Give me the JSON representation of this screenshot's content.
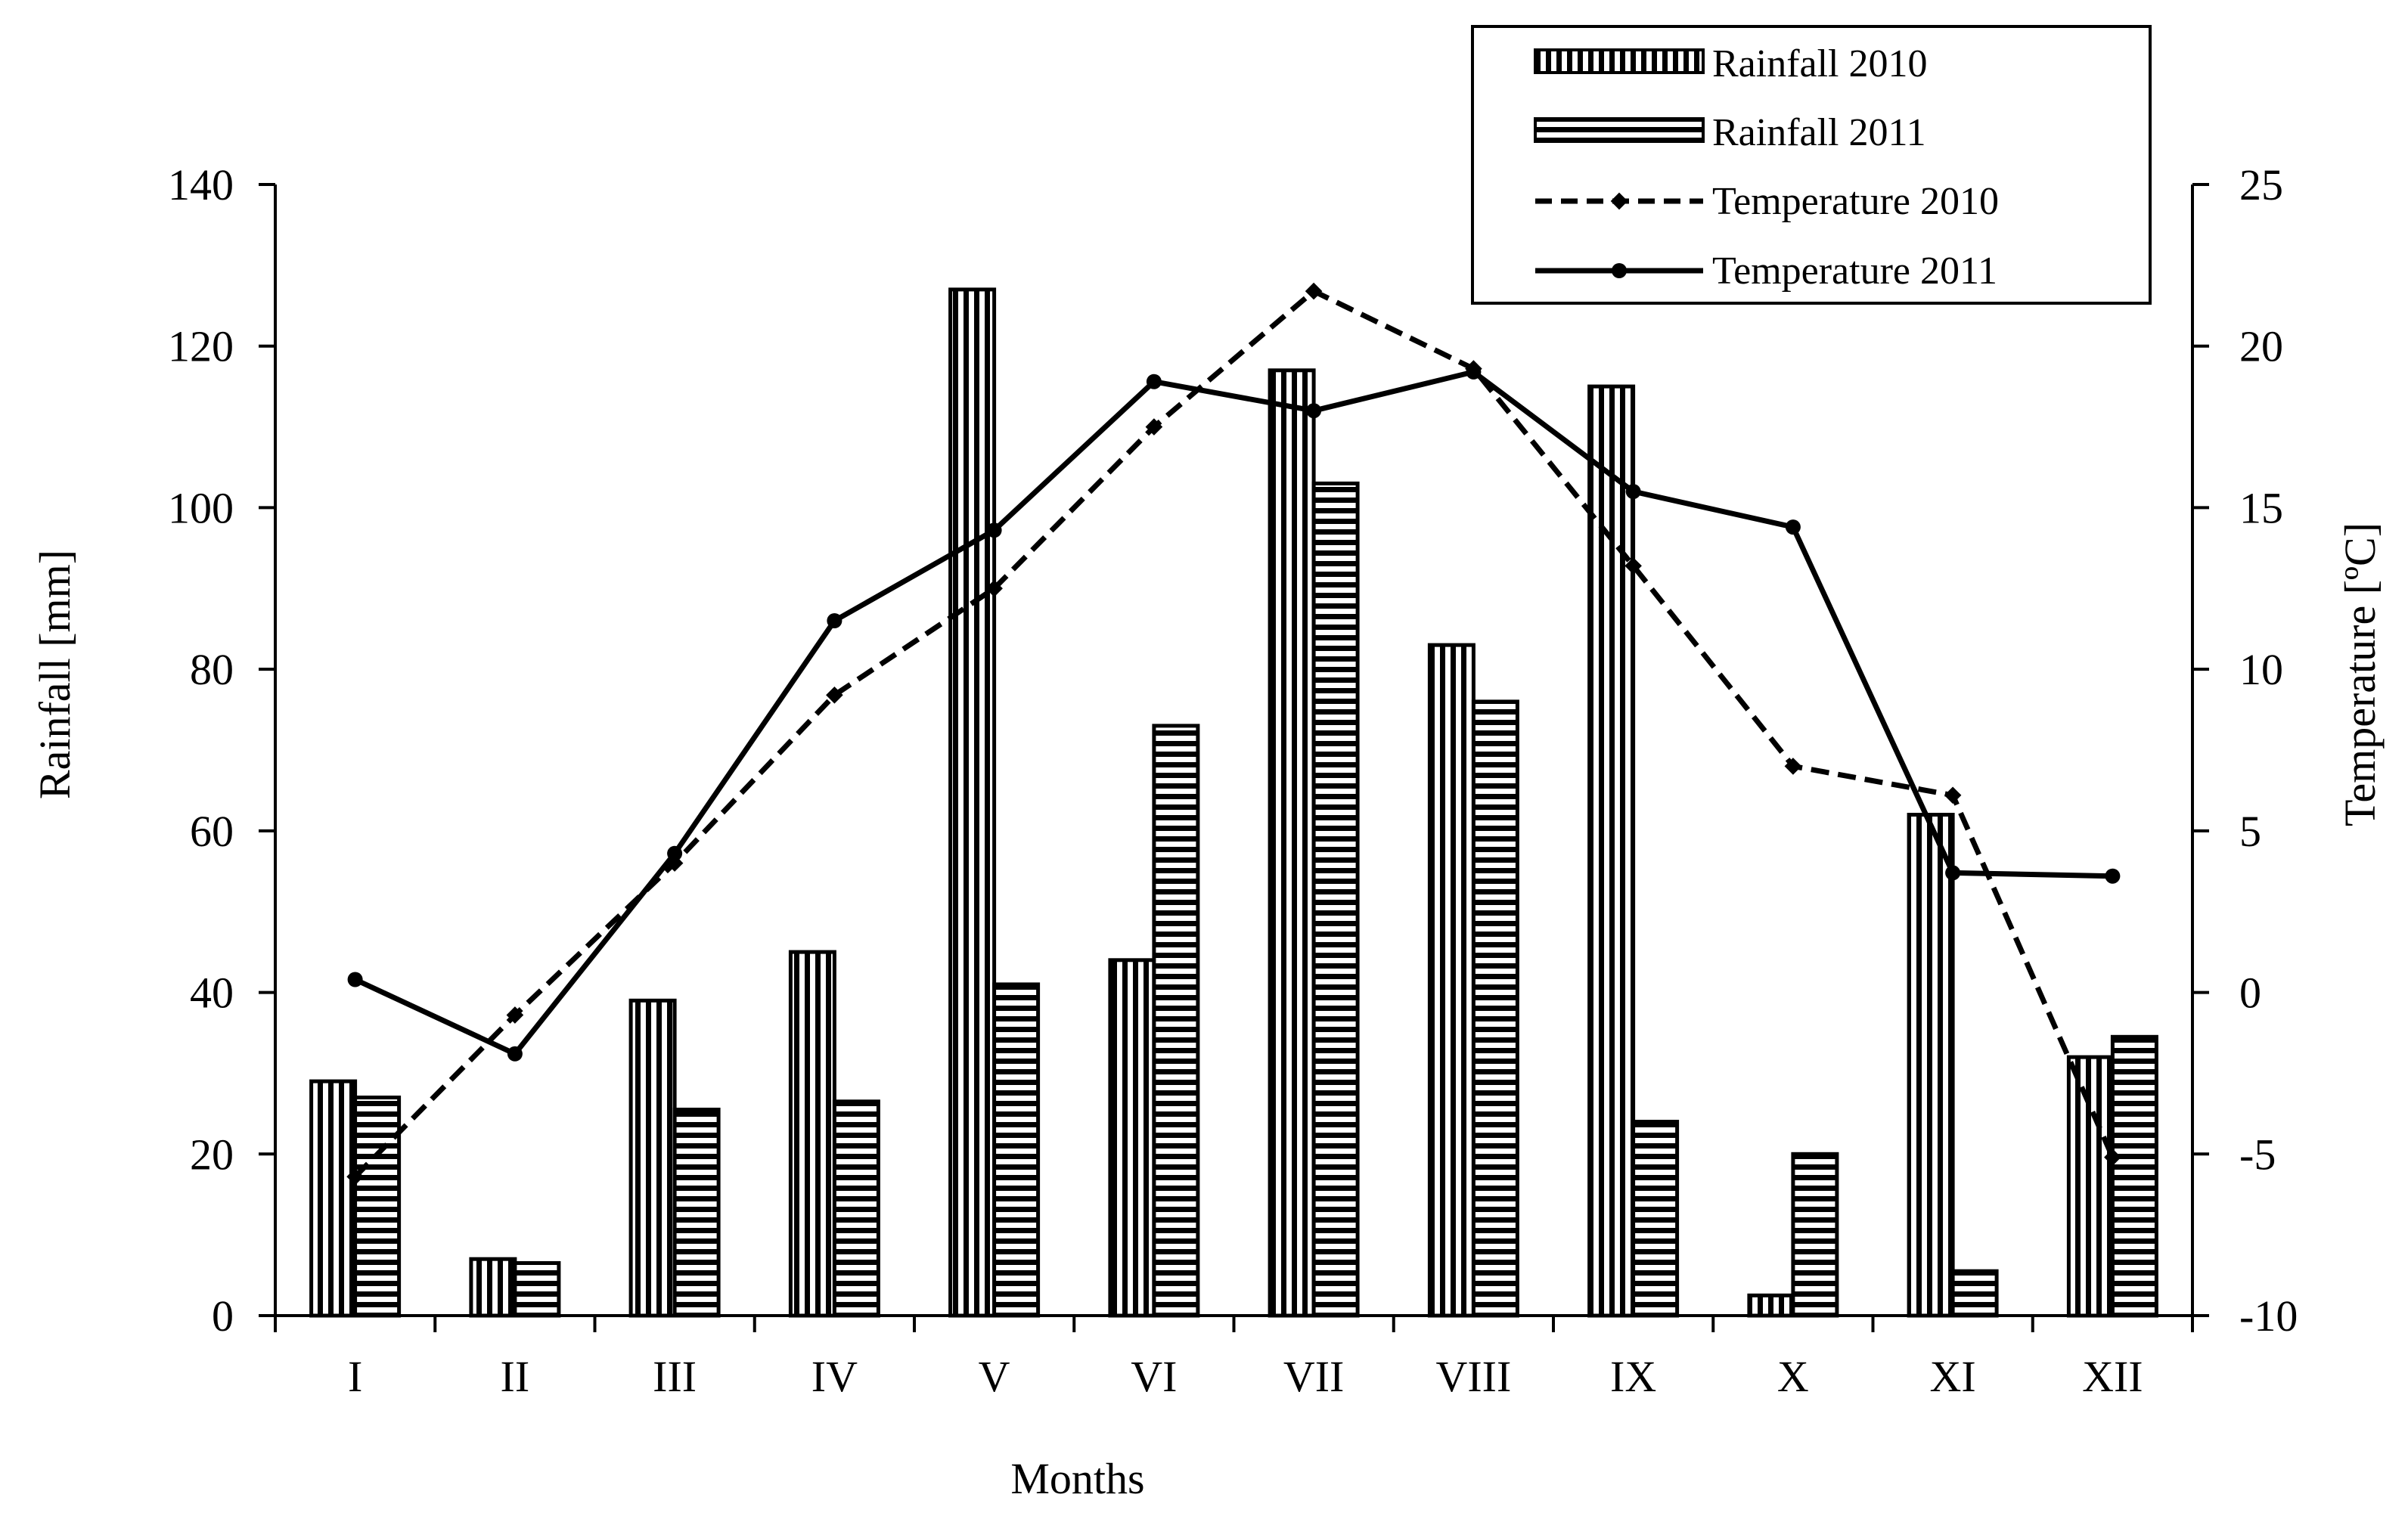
{
  "chart_data": {
    "type": "bar",
    "title": "",
    "xlabel": "Months",
    "ylabel": "Rainfall [mm]",
    "y2label": "Temperature [ºC]",
    "categories": [
      "I",
      "II",
      "III",
      "IV",
      "V",
      "VI",
      "VII",
      "VIII",
      "IX",
      "X",
      "XI",
      "XII"
    ],
    "ylim": [
      0,
      140
    ],
    "y_ticks": [
      0,
      20,
      40,
      60,
      80,
      100,
      120,
      140
    ],
    "y2lim": [
      -10,
      25
    ],
    "y2_ticks": [
      -10,
      -5,
      0,
      5,
      10,
      15,
      20,
      25
    ],
    "grid": false,
    "legend_position": "top-right",
    "series": [
      {
        "name": "Rainfall 2010",
        "kind": "bar",
        "axis": "left",
        "pattern": "vertical-stripes",
        "values": [
          29,
          7,
          39,
          45,
          127,
          44,
          117,
          83,
          115,
          2.5,
          62,
          32
        ]
      },
      {
        "name": "Rainfall 2011",
        "kind": "bar",
        "axis": "left",
        "pattern": "horizontal-stripes",
        "values": [
          27,
          6.5,
          25.5,
          26.5,
          41,
          73,
          103,
          76,
          24,
          20,
          5.5,
          34.5
        ]
      },
      {
        "name": "Temperature 2010",
        "kind": "line",
        "axis": "right",
        "style": "dashed",
        "marker": "diamond",
        "values": [
          -5.7,
          -0.7,
          4.0,
          9.2,
          12.5,
          17.5,
          21.7,
          19.3,
          13.2,
          7.0,
          6.1,
          -5.1
        ]
      },
      {
        "name": "Temperature 2011",
        "kind": "line",
        "axis": "right",
        "style": "solid",
        "marker": "circle",
        "values": [
          0.4,
          -1.9,
          4.3,
          11.5,
          14.3,
          18.9,
          18.0,
          19.2,
          15.5,
          14.4,
          3.7,
          3.6
        ]
      }
    ],
    "colors": {
      "ink": "#000000",
      "background": "#ffffff"
    }
  }
}
